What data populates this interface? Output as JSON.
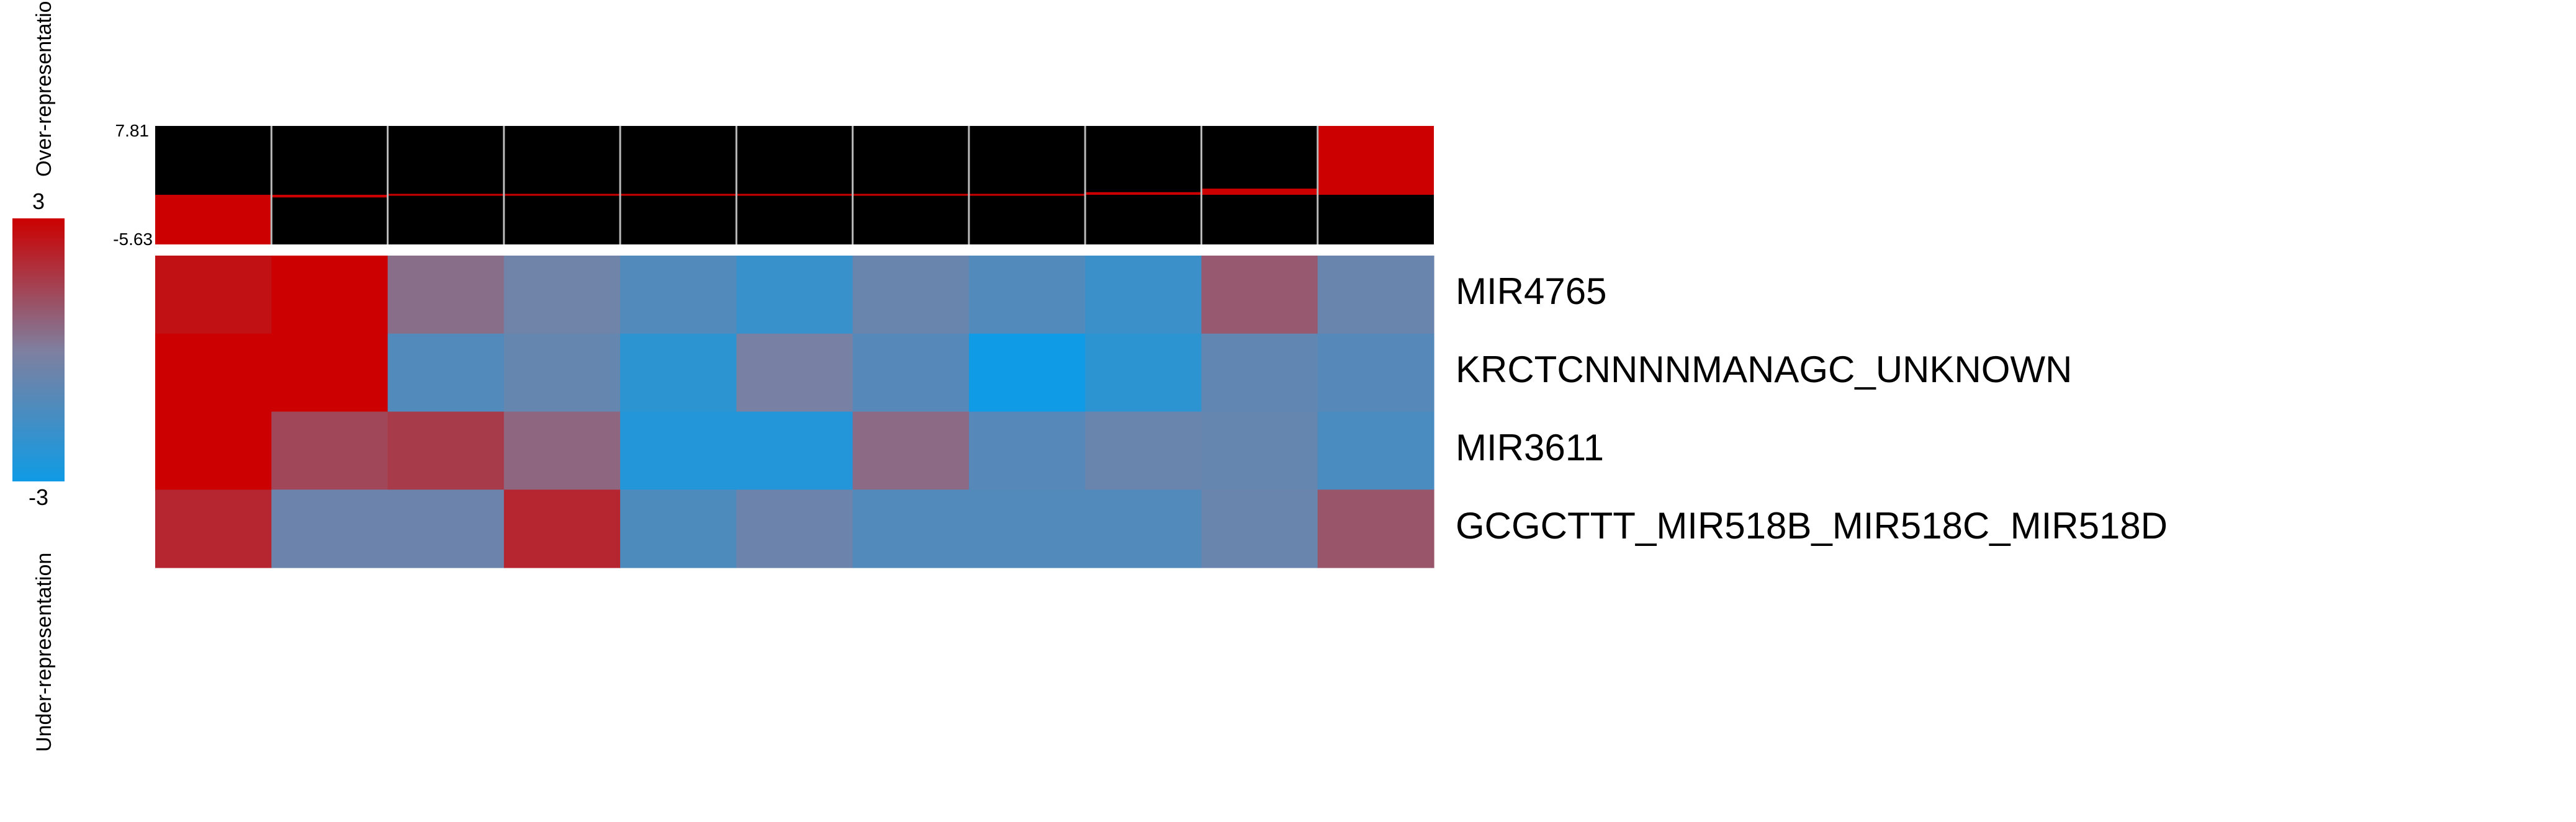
{
  "chart_data": {
    "type": "heatmap",
    "rows": [
      "MIR4765",
      "KRCTCNNNNMANAGC_UNKNOWN",
      "MIR3611",
      "GCGCTTT_MIR518B_MIR518C_MIR518D"
    ],
    "n_columns": 11,
    "values": [
      [
        2.6,
        3.0,
        0.4,
        -0.4,
        -1.2,
        -1.9,
        -0.6,
        -1.2,
        -1.8,
        0.9,
        -0.6
      ],
      [
        3.0,
        3.0,
        -1.2,
        -0.7,
        -2.2,
        -0.2,
        -1.1,
        -3.0,
        -2.2,
        -0.8,
        -1.1
      ],
      [
        3.0,
        1.3,
        1.6,
        0.6,
        -2.5,
        -2.5,
        0.5,
        -1.1,
        -0.6,
        -0.7,
        -1.4
      ],
      [
        2.1,
        -0.5,
        -0.5,
        2.1,
        -1.3,
        -0.5,
        -1.2,
        -1.2,
        -1.2,
        -0.6,
        1.0
      ]
    ],
    "color_scale": {
      "min": -3,
      "max": 3,
      "min_color": "#0f9be5",
      "mid_color": "#7f7f9f",
      "max_color": "#cc0000",
      "min_label": "-3",
      "max_label": "3",
      "over_label": "Over-representation",
      "under_label": "Under-representation"
    },
    "bar_track": {
      "min_label": "-5.63",
      "max_label": "7.81",
      "ylim": [
        -5.63,
        7.81
      ],
      "values": [
        -5.63,
        -0.3,
        -0.15,
        -0.05,
        0.0,
        0.0,
        0.05,
        0.15,
        0.3,
        0.7,
        7.81
      ],
      "background_color": "#000000",
      "bar_color": "#cc0000",
      "grid_color": "#bbbbbb"
    }
  }
}
